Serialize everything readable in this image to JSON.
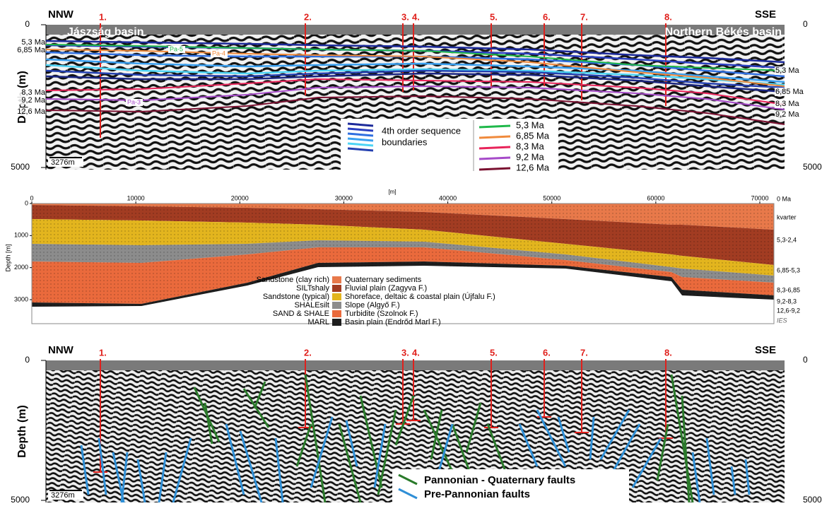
{
  "panel_top": {
    "left_label": "NNW",
    "right_label": "SSE",
    "basins": [
      "Jászság basin",
      "Northern Békés basin"
    ],
    "wells": [
      "1.",
      "2.",
      "3.",
      "4.",
      "5.",
      "6.",
      "7.",
      "8."
    ],
    "depth_axis": {
      "title": "Depth (m)",
      "ticks": [
        0,
        5000
      ]
    },
    "scale_bar": "3276m",
    "left_horizons": [
      "5,3 Ma",
      "6,85 Ma",
      "8,3 Ma",
      "9,2 Ma",
      "12,6 Ma"
    ],
    "right_horizons": [
      "5,3 Ma",
      "6,85 Ma",
      "8,3 Ma",
      "9,2 Ma"
    ],
    "sequences": [
      "Pa-5",
      "Pa-4",
      "Pa-3"
    ],
    "legend": {
      "sequence_boundaries": [
        "4th order sequence",
        "boundaries"
      ],
      "horizons": [
        {
          "label": "5,3 Ma",
          "color": "#1fb84a"
        },
        {
          "label": "6,85 Ma",
          "color": "#f08a3c"
        },
        {
          "label": "8,3 Ma",
          "color": "#e8245a"
        },
        {
          "label": "9,2 Ma",
          "color": "#a64ac9"
        },
        {
          "label": "12,6 Ma",
          "color": "#7a1030"
        }
      ]
    }
  },
  "model": {
    "x_unit": "[m]",
    "xticks": [
      0,
      10000,
      20000,
      30000,
      40000,
      50000,
      60000,
      70000
    ],
    "y_title": "Depth [m]",
    "yticks": [
      0,
      1000,
      2000,
      3000
    ],
    "age_labels": [
      "0 Ma",
      "kvarter",
      "5,3-2,4",
      "6,85-5,3",
      "8,3-6,85",
      "9,2-8,3",
      "12,6-9,2"
    ],
    "legend": [
      {
        "lithology": "Sandstone (clay rich)",
        "facies": "Quaternary sediments",
        "color": "#e8794a"
      },
      {
        "lithology": "SILTshaly",
        "facies": "Fluvial plain (Zagyva F.)",
        "color": "#a23c22"
      },
      {
        "lithology": "Sandstone (typical)",
        "facies": "Shoreface, deltaic & coastal plain (Újfalu F.)",
        "color": "#e3b51e"
      },
      {
        "lithology": "SHALEsilt",
        "facies": "Slope (Algyő F.)",
        "color": "#8c8c8c"
      },
      {
        "lithology": "SAND & SHALE",
        "facies": "Turbidite (Szolnok F.)",
        "color": "#ea6a3c"
      },
      {
        "lithology": "MARL",
        "facies": "Basin plain (Endrőd Marl F.)",
        "color": "#1e1e1e"
      }
    ],
    "credit": "IES"
  },
  "panel_bottom": {
    "left_label": "NNW",
    "right_label": "SSE",
    "wells": [
      "1.",
      "2.",
      "3.",
      "4.",
      "5.",
      "6.",
      "7.",
      "8."
    ],
    "depth_axis": {
      "title": "Depth (m)",
      "ticks": [
        0,
        5000
      ]
    },
    "scale_bar": "3276m",
    "legend": [
      {
        "label": "Pannonian - Quaternary faults",
        "color": "#2a7a2a"
      },
      {
        "label": "Pre-Pannonian faults",
        "color": "#2f8fd6"
      }
    ]
  }
}
